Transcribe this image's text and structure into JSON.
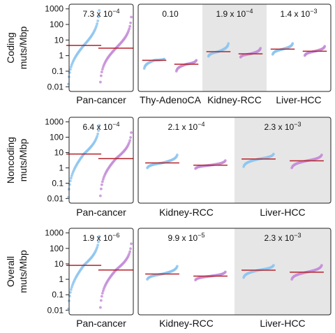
{
  "chart_data": [
    {
      "type": "scatter",
      "ylabel": [
        "Coding",
        "muts/Mbp"
      ],
      "yscale": "log",
      "ylim": [
        0.005,
        2000
      ],
      "yticks": [
        {
          "label": "1000",
          "value": 1000
        },
        {
          "label": "100",
          "value": 100
        },
        {
          "label": "10",
          "value": 10
        },
        {
          "label": "1",
          "value": 1
        },
        {
          "label": "0.1",
          "value": 0.1
        },
        {
          "label": "0.01",
          "value": 0.01
        }
      ],
      "panels": [
        {
          "shaded": false,
          "groups": [
            {
              "label": "Pan-cancer",
              "pvalue": {
                "mantissa": "7.3 x 10",
                "exponent": "−4"
              },
              "series": [
                {
                  "color": "#8ec5f0",
                  "median": 4.5,
                  "min": 0.015,
                  "max": 800
                },
                {
                  "color": "#c58ed8",
                  "median": 3.0,
                  "min": 0.02,
                  "max": 300
                }
              ]
            }
          ]
        },
        {
          "shaded": false,
          "groups": [
            {
              "label": "Thy-AdenoCA",
              "pvalue": {
                "mantissa": "0.10",
                "exponent": ""
              },
              "series": [
                {
                  "color": "#8ec5f0",
                  "median": 0.5,
                  "min": 0.15,
                  "max": 0.6
                },
                {
                  "color": "#c58ed8",
                  "median": 0.28,
                  "min": 0.1,
                  "max": 0.5
                }
              ]
            }
          ]
        },
        {
          "shaded": true,
          "groups": [
            {
              "label": "Kidney-RCC",
              "pvalue": {
                "mantissa": "1.9 x 10",
                "exponent": "−4"
              },
              "series": [
                {
                  "color": "#8ec5f0",
                  "median": 1.8,
                  "min": 0.9,
                  "max": 6
                },
                {
                  "color": "#c58ed8",
                  "median": 1.3,
                  "min": 0.8,
                  "max": 3
                }
              ]
            }
          ]
        },
        {
          "shaded": false,
          "groups": [
            {
              "label": "Liver-HCC",
              "pvalue": {
                "mantissa": "1.4 x 10",
                "exponent": "−3"
              },
              "series": [
                {
                  "color": "#8ec5f0",
                  "median": 2.6,
                  "min": 1.2,
                  "max": 6
                },
                {
                  "color": "#c58ed8",
                  "median": 1.9,
                  "min": 1.0,
                  "max": 4
                }
              ]
            }
          ]
        }
      ]
    },
    {
      "type": "scatter",
      "ylabel": [
        "Noncoding",
        "muts/Mbp"
      ],
      "yscale": "log",
      "ylim": [
        0.005,
        2000
      ],
      "yticks": [
        {
          "label": "1000",
          "value": 1000
        },
        {
          "label": "100",
          "value": 100
        },
        {
          "label": "10",
          "value": 10
        },
        {
          "label": "1",
          "value": 1
        },
        {
          "label": "0.1",
          "value": 0.1
        },
        {
          "label": "0.01",
          "value": 0.01
        }
      ],
      "panels": [
        {
          "shaded": false,
          "groups": [
            {
              "label": "Pan-cancer",
              "pvalue": {
                "mantissa": "6.4 x 10",
                "exponent": "−4"
              },
              "series": [
                {
                  "color": "#8ec5f0",
                  "median": 8,
                  "min": 0.012,
                  "max": 600
                },
                {
                  "color": "#c58ed8",
                  "median": 4,
                  "min": 0.015,
                  "max": 200
                }
              ]
            }
          ]
        },
        {
          "shaded": false,
          "groups": [
            {
              "label": "Kidney-RCC",
              "pvalue": {
                "mantissa": "2.1 x 10",
                "exponent": "−4"
              },
              "series": [
                {
                  "color": "#8ec5f0",
                  "median": 2.1,
                  "min": 1.0,
                  "max": 7
                },
                {
                  "color": "#c58ed8",
                  "median": 1.5,
                  "min": 0.9,
                  "max": 3
                }
              ]
            }
          ]
        },
        {
          "shaded": true,
          "groups": [
            {
              "label": "Liver-HCC",
              "pvalue": {
                "mantissa": "2.3 x 10",
                "exponent": "−3"
              },
              "series": [
                {
                  "color": "#8ec5f0",
                  "median": 3.8,
                  "min": 1.2,
                  "max": 8
                },
                {
                  "color": "#c58ed8",
                  "median": 2.9,
                  "min": 1.0,
                  "max": 7
                }
              ]
            }
          ]
        }
      ]
    },
    {
      "type": "scatter",
      "ylabel": [
        "Overall",
        "muts/Mbp"
      ],
      "yscale": "log",
      "ylim": [
        0.005,
        2000
      ],
      "yticks": [
        {
          "label": "1000",
          "value": 1000
        },
        {
          "label": "100",
          "value": 100
        },
        {
          "label": "10",
          "value": 10
        },
        {
          "label": "1",
          "value": 1
        },
        {
          "label": "0.1",
          "value": 0.1
        },
        {
          "label": "0.01",
          "value": 0.01
        }
      ],
      "panels": [
        {
          "shaded": false,
          "groups": [
            {
              "label": "Pan-cancer",
              "pvalue": {
                "mantissa": "1.9 x 10",
                "exponent": "−6"
              },
              "series": [
                {
                  "color": "#8ec5f0",
                  "median": 8,
                  "min": 0.012,
                  "max": 600
                },
                {
                  "color": "#c58ed8",
                  "median": 4,
                  "min": 0.015,
                  "max": 200
                }
              ]
            }
          ]
        },
        {
          "shaded": false,
          "groups": [
            {
              "label": "Kidney-RCC",
              "pvalue": {
                "mantissa": "9.9 x 10",
                "exponent": "−5"
              },
              "series": [
                {
                  "color": "#8ec5f0",
                  "median": 2.2,
                  "min": 1.0,
                  "max": 7
                },
                {
                  "color": "#c58ed8",
                  "median": 1.6,
                  "min": 0.9,
                  "max": 3
                }
              ]
            }
          ]
        },
        {
          "shaded": true,
          "groups": [
            {
              "label": "Liver-HCC",
              "pvalue": {
                "mantissa": "2.3 x 10",
                "exponent": "−3"
              },
              "series": [
                {
                  "color": "#8ec5f0",
                  "median": 3.9,
                  "min": 1.3,
                  "max": 8
                },
                {
                  "color": "#c58ed8",
                  "median": 2.9,
                  "min": 1.0,
                  "max": 8
                }
              ]
            }
          ]
        }
      ]
    }
  ]
}
